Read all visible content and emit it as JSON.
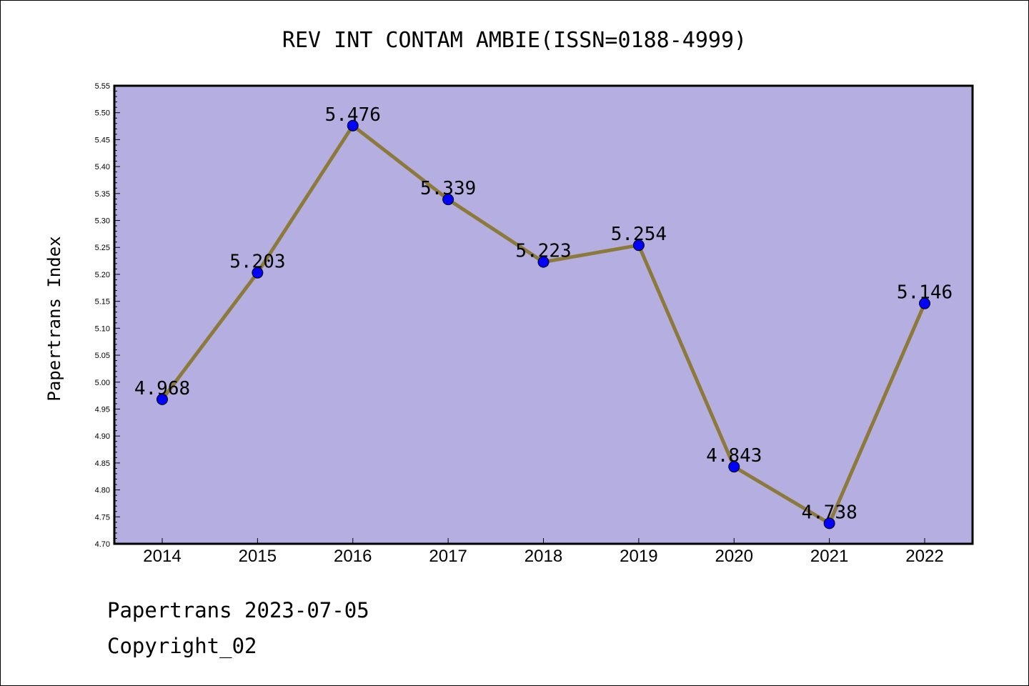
{
  "chart_data": {
    "type": "line",
    "title": "REV INT CONTAM AMBIE(ISSN=0188-4999)",
    "xlabel": "",
    "ylabel": "Papertrans Index",
    "categories": [
      "2014",
      "2015",
      "2016",
      "2017",
      "2018",
      "2019",
      "2020",
      "2021",
      "2022"
    ],
    "values": [
      4.968,
      5.203,
      5.476,
      5.339,
      5.223,
      5.254,
      4.843,
      4.738,
      5.146
    ],
    "data_labels": [
      "4.968",
      "5.203",
      "5.476",
      "5.339",
      "5.223",
      "5.254",
      "4.843",
      "4.738",
      "5.146"
    ],
    "ylim": [
      4.7,
      5.55
    ],
    "yticks": [
      "4.70",
      "4.75",
      "4.80",
      "4.85",
      "4.90",
      "4.95",
      "5.00",
      "5.05",
      "5.10",
      "5.15",
      "5.20",
      "5.25",
      "5.30",
      "5.35",
      "5.40",
      "5.45",
      "5.50",
      "5.55"
    ],
    "grid": false,
    "colors": {
      "plot_background": "#b5afe1",
      "line": "#8b7a3a",
      "marker": "#0000ff"
    }
  },
  "footer": {
    "line1": "Papertrans 2023-07-05",
    "line2": "Copyright_02"
  }
}
